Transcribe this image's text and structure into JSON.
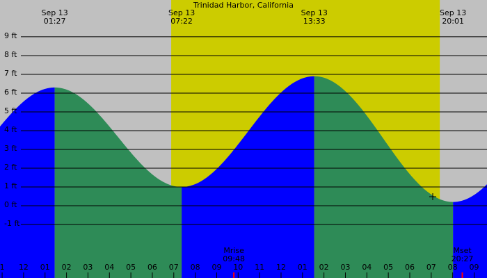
{
  "chart_data": {
    "type": "tide",
    "title": "Trinidad Harbor, California",
    "extremes": [
      {
        "date": "Sep 13",
        "time": "01:27",
        "height": 6.3
      },
      {
        "date": "Sep 13",
        "time": "07:22",
        "height": 1.0
      },
      {
        "date": "Sep 13",
        "time": "13:33",
        "height": 6.9
      },
      {
        "date": "Sep 13",
        "time": "20:01",
        "height": 0.2
      }
    ],
    "moon": [
      {
        "label": "Mrise",
        "time": "09:48"
      },
      {
        "label": "Mset",
        "time": "20:27"
      }
    ],
    "daylight": [
      6.88,
      19.4
    ],
    "xlim": [
      -1.1,
      21.6
    ],
    "xticks": [
      {
        "value": -1,
        "label": "1"
      },
      {
        "value": 0,
        "label": "12"
      },
      {
        "value": 1,
        "label": "01"
      },
      {
        "value": 2,
        "label": "02"
      },
      {
        "value": 3,
        "label": "03"
      },
      {
        "value": 4,
        "label": "04"
      },
      {
        "value": 5,
        "label": "05"
      },
      {
        "value": 6,
        "label": "06"
      },
      {
        "value": 7,
        "label": "07"
      },
      {
        "value": 8,
        "label": "08"
      },
      {
        "value": 9,
        "label": "09"
      },
      {
        "value": 10,
        "label": "10"
      },
      {
        "value": 11,
        "label": "11"
      },
      {
        "value": 12,
        "label": "12"
      },
      {
        "value": 13,
        "label": "01"
      },
      {
        "value": 14,
        "label": "02"
      },
      {
        "value": 15,
        "label": "03"
      },
      {
        "value": 16,
        "label": "04"
      },
      {
        "value": 17,
        "label": "05"
      },
      {
        "value": 18,
        "label": "06"
      },
      {
        "value": 19,
        "label": "07"
      },
      {
        "value": 20,
        "label": "08"
      },
      {
        "value": 21,
        "label": "09"
      }
    ],
    "ylim": [
      -3.85,
      10.96
    ],
    "yticks": [
      {
        "value": -1,
        "label": "-1 ft"
      },
      {
        "value": 0,
        "label": "0 ft"
      },
      {
        "value": 1,
        "label": "1 ft"
      },
      {
        "value": 2,
        "label": "2 ft"
      },
      {
        "value": 3,
        "label": "3 ft"
      },
      {
        "value": 4,
        "label": "4 ft"
      },
      {
        "value": 5,
        "label": "5 ft"
      },
      {
        "value": 6,
        "label": "6 ft"
      },
      {
        "value": 7,
        "label": "7 ft"
      },
      {
        "value": 8,
        "label": "8 ft"
      },
      {
        "value": 9,
        "label": "9 ft"
      }
    ],
    "background": "#c0c0c0",
    "daylight_color": "#cccc00",
    "rising_color": "#0000ff",
    "falling_color": "#2e8b57",
    "grid": true
  }
}
